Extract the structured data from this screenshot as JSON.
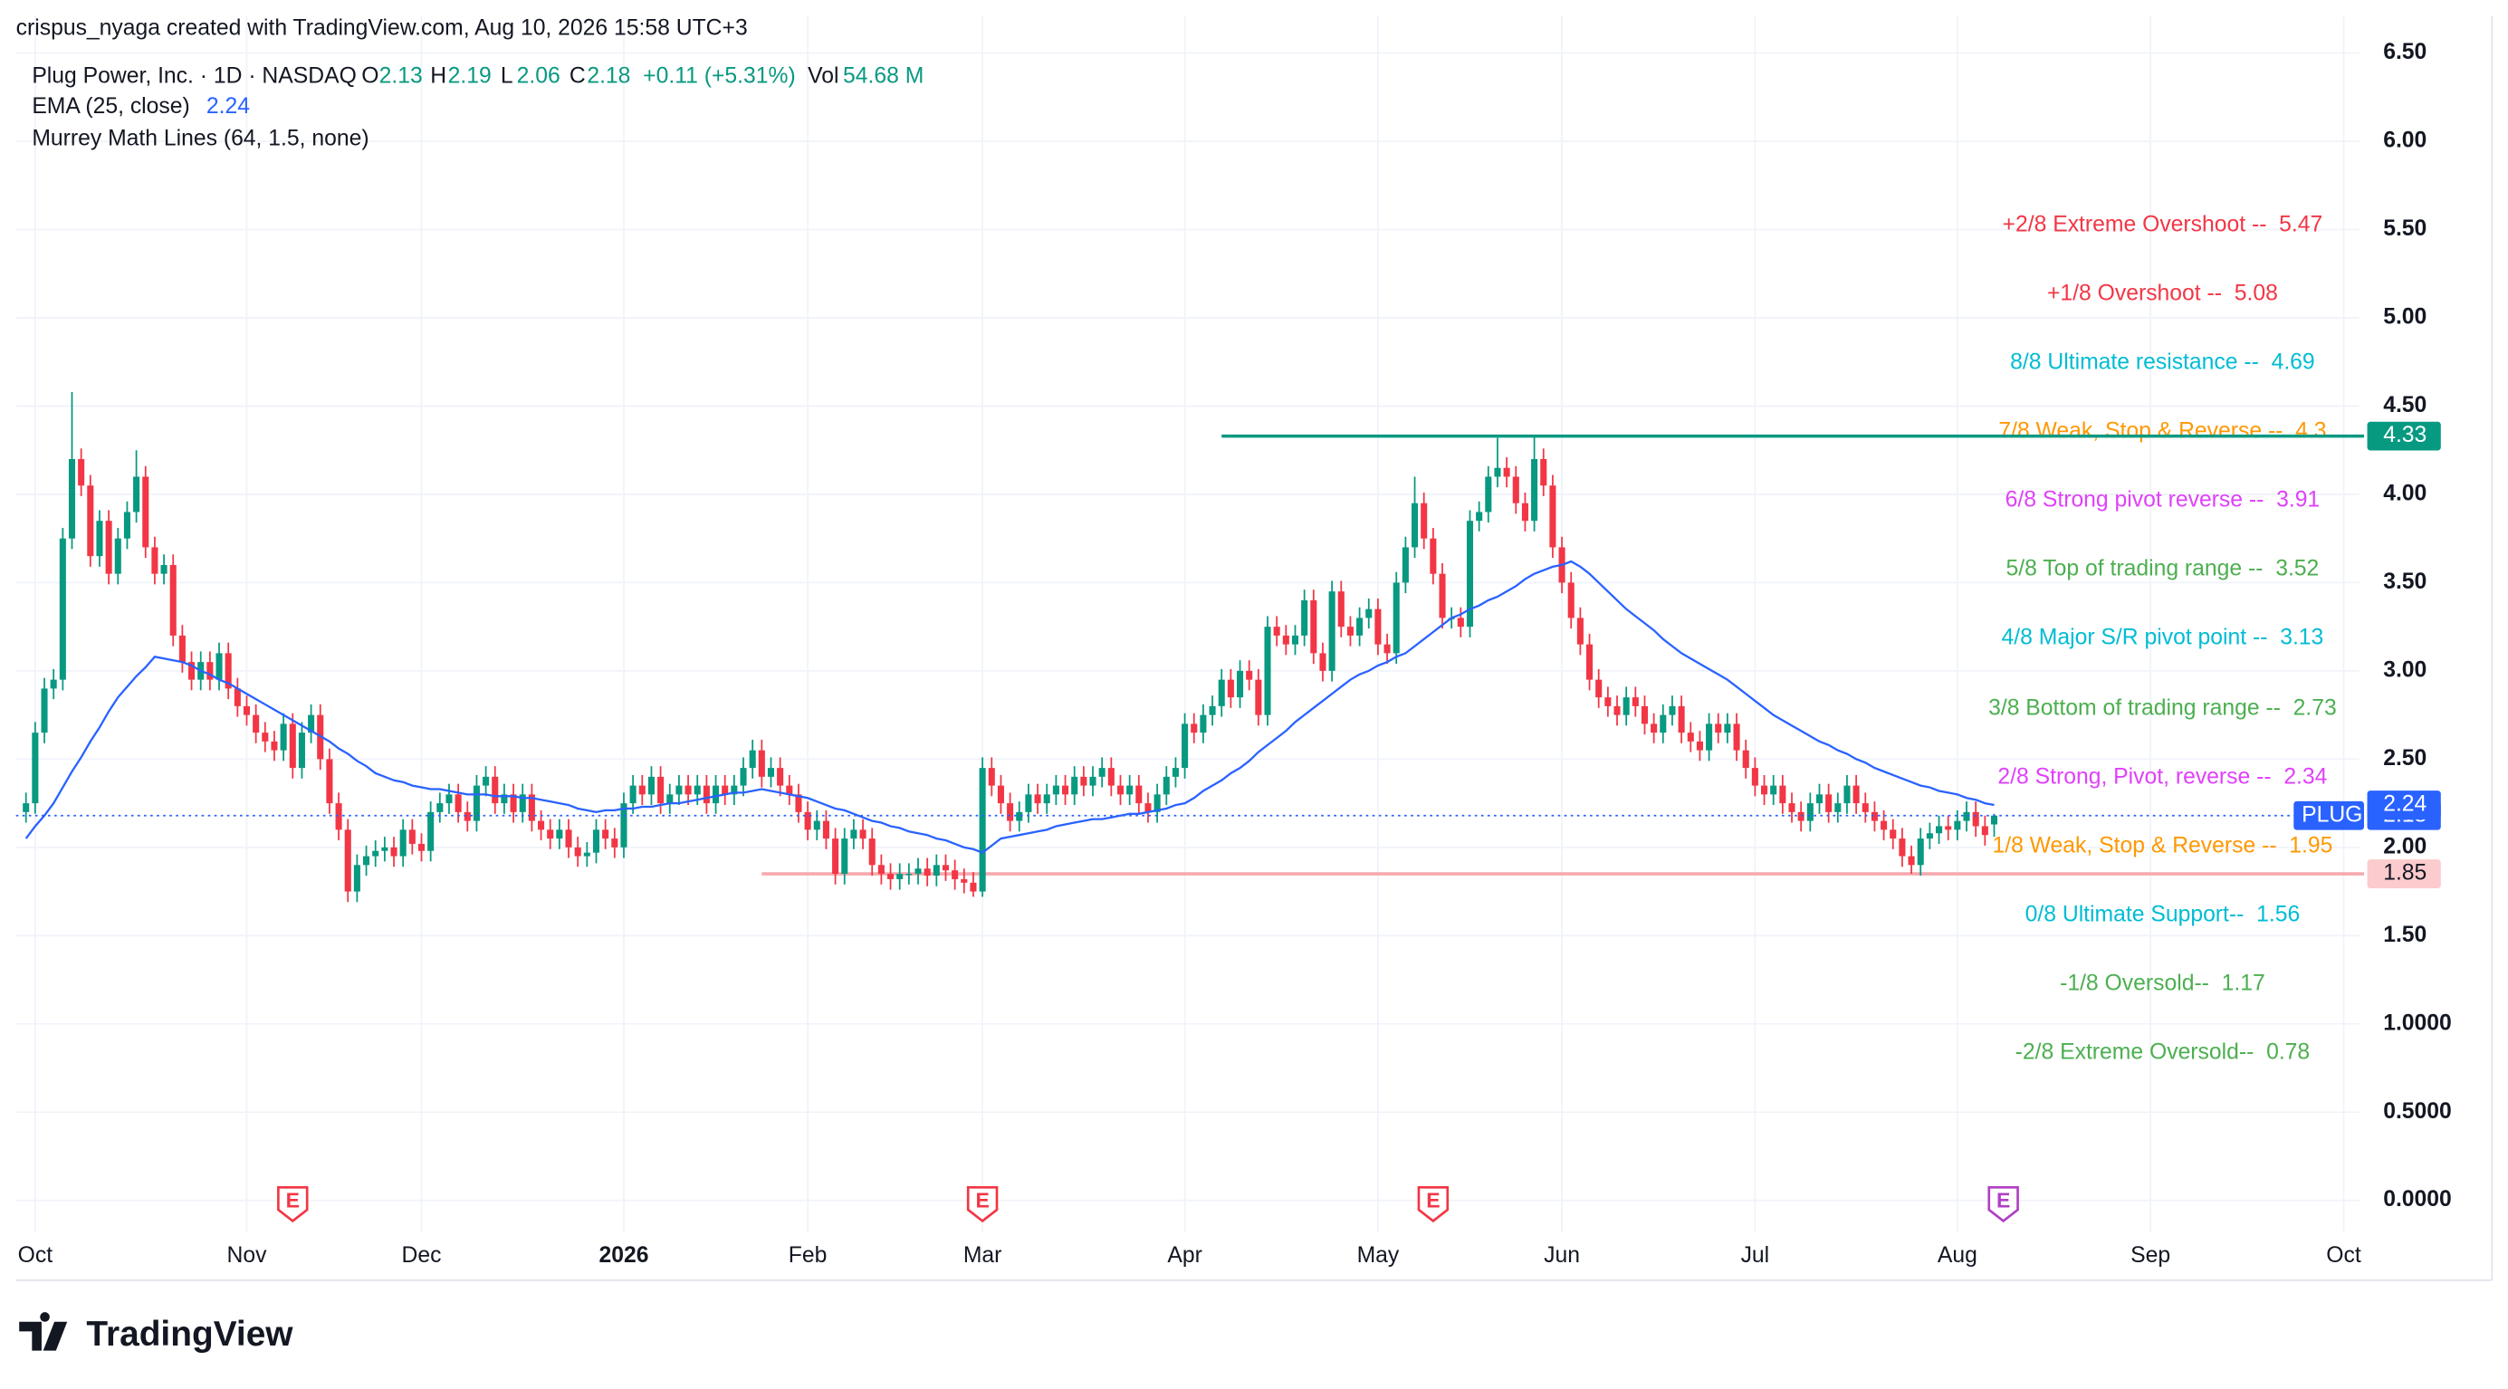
{
  "header": {
    "attribution": "crispus_nyaga created with TradingView.com, Aug 10, 2026 15:58 UTC+3"
  },
  "legend": {
    "symbol": "Plug Power, Inc. · 1D · NASDAQ",
    "o": "O",
    "h": "H",
    "l": "L",
    "c": "C",
    "change": "+0.11 (+5.31%)",
    "vol_label": "Vol",
    "vol": "54.68 M"
  },
  "footer": {
    "brand": "TradingView"
  },
  "chart_data": {
    "type": "candlestick",
    "symbol_label": "PLUG",
    "colors": {
      "up": "#089981",
      "down": "#f23645"
    },
    "open": [
      2.2,
      2.25,
      2.65,
      2.9,
      2.95,
      3.75,
      4.2,
      4.05,
      3.65,
      3.85,
      3.55,
      3.75,
      3.9,
      4.1,
      3.7,
      3.55,
      3.6,
      3.2,
      3.05,
      2.95,
      3.05,
      2.95,
      3.1,
      2.9,
      2.8,
      2.75,
      2.65,
      2.6,
      2.55,
      2.7,
      2.45,
      2.65,
      2.75,
      2.5,
      2.25,
      2.1,
      1.75,
      1.9,
      1.95,
      1.98,
      2.0,
      1.95,
      2.1,
      2.02,
      1.98,
      2.2,
      2.25,
      2.3,
      2.2,
      2.15,
      2.35,
      2.4,
      2.25,
      2.3,
      2.2,
      2.3,
      2.15,
      2.1,
      2.05,
      2.1,
      2.0,
      1.95,
      1.97,
      2.1,
      2.05,
      2.0,
      2.25,
      2.35,
      2.3,
      2.4,
      2.25,
      2.3,
      2.35,
      2.3,
      2.35,
      2.25,
      2.35,
      2.3,
      2.35,
      2.45,
      2.55,
      2.4,
      2.45,
      2.35,
      2.3,
      2.2,
      2.1,
      2.15,
      2.05,
      1.85,
      2.05,
      2.1,
      2.05,
      1.9,
      1.85,
      1.82,
      1.85,
      1.85,
      1.88,
      1.84,
      1.9,
      1.87,
      1.82,
      1.8,
      1.75,
      2.45,
      2.35,
      2.25,
      2.15,
      2.2,
      2.3,
      2.25,
      2.3,
      2.35,
      2.3,
      2.4,
      2.35,
      2.4,
      2.45,
      2.35,
      2.3,
      2.35,
      2.25,
      2.2,
      2.3,
      2.4,
      2.45,
      2.7,
      2.65,
      2.75,
      2.8,
      2.95,
      2.85,
      3.0,
      2.95,
      2.75,
      3.25,
      3.2,
      3.15,
      3.2,
      3.4,
      3.1,
      3.0,
      3.45,
      3.25,
      3.2,
      3.3,
      3.35,
      3.15,
      3.1,
      3.5,
      3.7,
      3.95,
      3.75,
      3.55,
      3.3,
      3.3,
      3.25,
      3.85,
      3.9,
      4.1,
      4.15,
      4.1,
      3.95,
      3.85,
      4.2,
      4.05,
      3.7,
      3.5,
      3.3,
      3.15,
      2.95,
      2.85,
      2.8,
      2.75,
      2.85,
      2.8,
      2.7,
      2.65,
      2.75,
      2.8,
      2.65,
      2.6,
      2.55,
      2.7,
      2.65,
      2.7,
      2.55,
      2.45,
      2.35,
      2.3,
      2.35,
      2.25,
      2.2,
      2.15,
      2.25,
      2.3,
      2.2,
      2.25,
      2.35,
      2.25,
      2.2,
      2.15,
      2.1,
      2.05,
      1.95,
      1.9,
      2.05,
      2.08,
      2.12,
      2.1,
      2.15,
      2.2,
      2.12,
      2.13
    ],
    "high": [
      2.31,
      2.71,
      2.96,
      3.01,
      3.81,
      4.58,
      4.26,
      4.11,
      3.91,
      3.91,
      3.81,
      3.96,
      4.25,
      4.16,
      3.76,
      3.66,
      3.66,
      3.26,
      3.11,
      3.11,
      3.11,
      3.16,
      3.16,
      2.96,
      2.86,
      2.81,
      2.71,
      2.66,
      2.76,
      2.76,
      2.71,
      2.81,
      2.81,
      2.56,
      2.31,
      2.16,
      1.96,
      2.01,
      2.04,
      2.06,
      2.06,
      2.16,
      2.16,
      2.08,
      2.26,
      2.31,
      2.36,
      2.36,
      2.26,
      2.41,
      2.46,
      2.46,
      2.36,
      2.36,
      2.36,
      2.36,
      2.21,
      2.16,
      2.16,
      2.16,
      2.06,
      2.03,
      2.16,
      2.16,
      2.11,
      2.31,
      2.41,
      2.41,
      2.46,
      2.46,
      2.36,
      2.41,
      2.41,
      2.41,
      2.41,
      2.41,
      2.41,
      2.41,
      2.51,
      2.61,
      2.61,
      2.51,
      2.51,
      2.41,
      2.36,
      2.26,
      2.21,
      2.21,
      2.11,
      2.11,
      2.16,
      2.16,
      2.11,
      1.96,
      1.91,
      1.91,
      1.91,
      1.94,
      1.94,
      1.96,
      1.96,
      1.93,
      1.88,
      1.86,
      2.51,
      2.51,
      2.41,
      2.31,
      2.26,
      2.36,
      2.36,
      2.36,
      2.41,
      2.41,
      2.46,
      2.46,
      2.46,
      2.51,
      2.51,
      2.41,
      2.41,
      2.41,
      2.31,
      2.36,
      2.46,
      2.51,
      2.76,
      2.76,
      2.81,
      2.86,
      3.01,
      3.01,
      3.06,
      3.06,
      3.01,
      3.31,
      3.31,
      3.26,
      3.26,
      3.46,
      3.46,
      3.16,
      3.51,
      3.51,
      3.31,
      3.36,
      3.41,
      3.41,
      3.21,
      3.56,
      3.76,
      4.1,
      4.01,
      3.81,
      3.61,
      3.36,
      3.36,
      3.91,
      3.96,
      4.16,
      4.32,
      4.21,
      4.16,
      4.01,
      4.33,
      4.26,
      4.11,
      3.76,
      3.56,
      3.36,
      3.21,
      3.01,
      2.91,
      2.86,
      2.91,
      2.91,
      2.86,
      2.76,
      2.81,
      2.86,
      2.86,
      2.71,
      2.66,
      2.76,
      2.76,
      2.76,
      2.76,
      2.61,
      2.51,
      2.41,
      2.41,
      2.41,
      2.31,
      2.26,
      2.31,
      2.36,
      2.36,
      2.31,
      2.41,
      2.41,
      2.31,
      2.26,
      2.21,
      2.16,
      2.11,
      2.01,
      2.11,
      2.14,
      2.18,
      2.18,
      2.21,
      2.26,
      2.26,
      2.18,
      2.19
    ],
    "low": [
      2.14,
      2.19,
      2.59,
      2.84,
      2.89,
      3.69,
      3.99,
      3.59,
      3.59,
      3.49,
      3.49,
      3.69,
      3.84,
      3.64,
      3.49,
      3.49,
      3.14,
      2.99,
      2.89,
      2.89,
      2.89,
      2.89,
      2.84,
      2.74,
      2.69,
      2.59,
      2.54,
      2.49,
      2.49,
      2.39,
      2.39,
      2.59,
      2.44,
      2.19,
      2.04,
      1.69,
      1.69,
      1.84,
      1.89,
      1.92,
      1.89,
      1.89,
      1.96,
      1.92,
      1.92,
      2.14,
      2.19,
      2.14,
      2.09,
      2.09,
      2.29,
      2.19,
      2.19,
      2.14,
      2.14,
      2.09,
      2.04,
      1.99,
      1.99,
      1.94,
      1.89,
      1.89,
      1.91,
      1.99,
      1.94,
      1.94,
      2.19,
      2.24,
      2.24,
      2.19,
      2.19,
      2.24,
      2.24,
      2.24,
      2.19,
      2.19,
      2.24,
      2.24,
      2.29,
      2.39,
      2.34,
      2.34,
      2.29,
      2.24,
      2.14,
      2.04,
      2.04,
      1.99,
      1.79,
      1.79,
      1.99,
      1.99,
      1.84,
      1.79,
      1.76,
      1.76,
      1.79,
      1.79,
      1.78,
      1.78,
      1.81,
      1.76,
      1.74,
      1.72,
      1.72,
      2.29,
      2.19,
      2.09,
      2.09,
      2.14,
      2.19,
      2.19,
      2.24,
      2.24,
      2.24,
      2.29,
      2.29,
      2.34,
      2.29,
      2.24,
      2.24,
      2.19,
      2.14,
      2.14,
      2.24,
      2.34,
      2.39,
      2.59,
      2.59,
      2.69,
      2.74,
      2.79,
      2.79,
      2.89,
      2.69,
      2.69,
      3.14,
      3.09,
      3.09,
      3.14,
      3.04,
      2.94,
      2.94,
      3.19,
      3.14,
      3.14,
      3.24,
      3.09,
      3.04,
      3.04,
      3.44,
      3.64,
      3.69,
      3.49,
      3.24,
      3.24,
      3.19,
      3.19,
      3.79,
      3.84,
      4.04,
      4.04,
      3.89,
      3.79,
      3.79,
      3.99,
      3.64,
      3.44,
      3.24,
      3.09,
      2.89,
      2.79,
      2.74,
      2.69,
      2.69,
      2.74,
      2.64,
      2.59,
      2.59,
      2.69,
      2.59,
      2.54,
      2.49,
      2.49,
      2.59,
      2.59,
      2.49,
      2.39,
      2.29,
      2.24,
      2.24,
      2.19,
      2.14,
      2.09,
      2.09,
      2.19,
      2.14,
      2.14,
      2.19,
      2.19,
      2.14,
      2.09,
      2.04,
      1.99,
      1.89,
      1.85,
      1.84,
      1.99,
      2.02,
      2.04,
      2.04,
      2.09,
      2.06,
      2.01,
      2.06
    ],
    "close": [
      2.25,
      2.65,
      2.9,
      2.95,
      3.75,
      4.2,
      4.05,
      3.65,
      3.85,
      3.55,
      3.75,
      3.9,
      4.1,
      3.7,
      3.55,
      3.6,
      3.2,
      3.05,
      2.95,
      3.05,
      2.95,
      3.1,
      2.9,
      2.8,
      2.75,
      2.65,
      2.6,
      2.55,
      2.7,
      2.45,
      2.65,
      2.75,
      2.5,
      2.25,
      2.1,
      1.75,
      1.9,
      1.95,
      1.98,
      2.0,
      1.95,
      2.1,
      2.02,
      1.98,
      2.2,
      2.25,
      2.3,
      2.2,
      2.15,
      2.35,
      2.4,
      2.25,
      2.3,
      2.2,
      2.3,
      2.15,
      2.1,
      2.05,
      2.1,
      2.0,
      1.95,
      1.97,
      2.1,
      2.05,
      2.0,
      2.25,
      2.35,
      2.3,
      2.4,
      2.25,
      2.3,
      2.35,
      2.3,
      2.35,
      2.25,
      2.35,
      2.3,
      2.35,
      2.45,
      2.55,
      2.4,
      2.45,
      2.35,
      2.3,
      2.2,
      2.1,
      2.15,
      2.05,
      1.85,
      2.05,
      2.1,
      2.05,
      1.9,
      1.85,
      1.82,
      1.85,
      1.85,
      1.88,
      1.84,
      1.9,
      1.87,
      1.82,
      1.8,
      1.75,
      2.45,
      2.35,
      2.25,
      2.15,
      2.2,
      2.3,
      2.25,
      2.3,
      2.35,
      2.3,
      2.4,
      2.35,
      2.4,
      2.45,
      2.35,
      2.3,
      2.35,
      2.25,
      2.2,
      2.3,
      2.4,
      2.45,
      2.7,
      2.65,
      2.75,
      2.8,
      2.95,
      2.85,
      3.0,
      2.95,
      2.75,
      3.25,
      3.2,
      3.15,
      3.2,
      3.4,
      3.1,
      3.0,
      3.45,
      3.25,
      3.2,
      3.3,
      3.35,
      3.15,
      3.1,
      3.5,
      3.7,
      3.95,
      3.75,
      3.55,
      3.3,
      3.3,
      3.25,
      3.85,
      3.9,
      4.1,
      4.15,
      4.1,
      3.95,
      3.85,
      4.2,
      4.05,
      3.7,
      3.5,
      3.3,
      3.15,
      2.95,
      2.85,
      2.8,
      2.75,
      2.85,
      2.8,
      2.7,
      2.65,
      2.75,
      2.8,
      2.65,
      2.6,
      2.55,
      2.7,
      2.65,
      2.7,
      2.55,
      2.45,
      2.35,
      2.3,
      2.35,
      2.25,
      2.2,
      2.15,
      2.25,
      2.3,
      2.2,
      2.25,
      2.35,
      2.25,
      2.2,
      2.15,
      2.1,
      2.05,
      1.95,
      1.9,
      2.05,
      2.08,
      2.12,
      2.1,
      2.15,
      2.2,
      2.12,
      2.07,
      2.18
    ],
    "ema": {
      "name": "EMA (25, close)",
      "color": "#2962ff",
      "values": [
        2.05,
        2.12,
        2.18,
        2.25,
        2.34,
        2.43,
        2.51,
        2.6,
        2.68,
        2.77,
        2.85,
        2.91,
        2.97,
        3.02,
        3.08,
        3.07,
        3.06,
        3.05,
        3.03,
        3.0,
        2.98,
        2.95,
        2.93,
        2.9,
        2.87,
        2.84,
        2.81,
        2.78,
        2.75,
        2.72,
        2.69,
        2.66,
        2.63,
        2.6,
        2.56,
        2.53,
        2.49,
        2.46,
        2.42,
        2.4,
        2.38,
        2.37,
        2.35,
        2.34,
        2.33,
        2.33,
        2.32,
        2.31,
        2.3,
        2.3,
        2.3,
        2.29,
        2.29,
        2.29,
        2.28,
        2.28,
        2.27,
        2.26,
        2.25,
        2.24,
        2.22,
        2.21,
        2.2,
        2.21,
        2.21,
        2.22,
        2.22,
        2.23,
        2.23,
        2.24,
        2.25,
        2.25,
        2.26,
        2.27,
        2.28,
        2.29,
        2.3,
        2.31,
        2.31,
        2.32,
        2.33,
        2.32,
        2.31,
        2.3,
        2.29,
        2.28,
        2.26,
        2.24,
        2.22,
        2.21,
        2.19,
        2.17,
        2.15,
        2.14,
        2.12,
        2.11,
        2.09,
        2.08,
        2.07,
        2.05,
        2.04,
        2.02,
        2.0,
        1.99,
        1.97,
        2.01,
        2.05,
        2.06,
        2.07,
        2.08,
        2.09,
        2.1,
        2.12,
        2.13,
        2.14,
        2.15,
        2.16,
        2.16,
        2.17,
        2.18,
        2.19,
        2.19,
        2.2,
        2.21,
        2.22,
        2.24,
        2.25,
        2.28,
        2.32,
        2.35,
        2.38,
        2.42,
        2.45,
        2.49,
        2.54,
        2.58,
        2.62,
        2.66,
        2.71,
        2.75,
        2.79,
        2.83,
        2.87,
        2.91,
        2.95,
        2.98,
        3.0,
        3.03,
        3.05,
        3.08,
        3.1,
        3.14,
        3.18,
        3.22,
        3.26,
        3.3,
        3.32,
        3.35,
        3.37,
        3.4,
        3.42,
        3.45,
        3.48,
        3.52,
        3.55,
        3.57,
        3.59,
        3.6,
        3.62,
        3.59,
        3.55,
        3.5,
        3.45,
        3.4,
        3.35,
        3.31,
        3.27,
        3.23,
        3.18,
        3.14,
        3.1,
        3.07,
        3.04,
        3.01,
        2.98,
        2.95,
        2.91,
        2.87,
        2.83,
        2.79,
        2.75,
        2.72,
        2.69,
        2.66,
        2.63,
        2.6,
        2.58,
        2.55,
        2.53,
        2.5,
        2.48,
        2.45,
        2.43,
        2.41,
        2.39,
        2.37,
        2.35,
        2.34,
        2.32,
        2.31,
        2.3,
        2.28,
        2.27,
        2.25,
        2.24
      ]
    },
    "murrey": {
      "name": "Murrey Math Lines (64, 1.5, none)",
      "levels": [
        {
          "text": "+2/8 Extreme Overshoot --  5.47",
          "value": 5.47,
          "color": "#f23645"
        },
        {
          "text": "+1/8 Overshoot --  5.08",
          "value": 5.08,
          "color": "#f23645"
        },
        {
          "text": "8/8 Ultimate resistance --  4.69",
          "value": 4.69,
          "color": "#00bcd4"
        },
        {
          "text": "7/8 Weak, Stop & Reverse --  4.3",
          "value": 4.3,
          "color": "#ff9800"
        },
        {
          "text": "6/8 Strong pivot reverse --  3.91",
          "value": 3.91,
          "color": "#e040fb"
        },
        {
          "text": "5/8 Top of trading range --  3.52",
          "value": 3.52,
          "color": "#4caf50"
        },
        {
          "text": "4/8 Major S/R pivot point --  3.13",
          "value": 3.13,
          "color": "#00bcd4"
        },
        {
          "text": "3/8 Bottom of trading range --  2.73",
          "value": 2.73,
          "color": "#4caf50"
        },
        {
          "text": "2/8 Strong, Pivot, reverse --  2.34",
          "value": 2.34,
          "color": "#e040fb"
        },
        {
          "text": "1/8 Weak, Stop & Reverse --  1.95",
          "value": 1.95,
          "color": "#ff9800"
        },
        {
          "text": "0/8 Ultimate Support--  1.56",
          "value": 1.56,
          "color": "#00bcd4"
        },
        {
          "text": "-1/8 Oversold--  1.17",
          "value": 1.17,
          "color": "#4caf50"
        },
        {
          "text": "-2/8 Extreme Oversold--  0.78",
          "value": 0.78,
          "color": "#4caf50"
        }
      ]
    },
    "levels": [
      {
        "value": 4.33,
        "x_start": 130,
        "color": "#089981"
      },
      {
        "value": 1.85,
        "x_start": 80,
        "color": "#f7a9ae"
      }
    ],
    "events": {
      "label": "E",
      "x": [
        29,
        104,
        153,
        215
      ],
      "colors": [
        "#f23645",
        "#f23645",
        "#f23645",
        "#b03fc4"
      ]
    },
    "xlim": [
      -1,
      254
    ],
    "xticks": [
      {
        "value": 1,
        "label": "Oct"
      },
      {
        "value": 24,
        "label": "Nov"
      },
      {
        "value": 43,
        "label": "Dec"
      },
      {
        "value": 65,
        "label": "2026"
      },
      {
        "value": 85,
        "label": "Feb"
      },
      {
        "value": 104,
        "label": "Mar"
      },
      {
        "value": 126,
        "label": "Apr"
      },
      {
        "value": 147,
        "label": "May"
      },
      {
        "value": 167,
        "label": "Jun"
      },
      {
        "value": 188,
        "label": "Jul"
      },
      {
        "value": 210,
        "label": "Aug"
      },
      {
        "value": 231,
        "label": "Sep"
      },
      {
        "value": 252,
        "label": "Oct"
      }
    ],
    "ylim": [
      -0.18,
      6.71
    ],
    "yticks": [
      {
        "value": 0,
        "label": "0.0000"
      },
      {
        "value": 0.5,
        "label": "0.5000"
      },
      {
        "value": 1,
        "label": "1.0000"
      },
      {
        "value": 1.5,
        "label": "1.50"
      },
      {
        "value": 2,
        "label": "2.00"
      },
      {
        "value": 2.5,
        "label": "2.50"
      },
      {
        "value": 3,
        "label": "3.00"
      },
      {
        "value": 3.5,
        "label": "3.50"
      },
      {
        "value": 4,
        "label": "4.00"
      },
      {
        "value": 4.5,
        "label": "4.50"
      },
      {
        "value": 5,
        "label": "5.00"
      },
      {
        "value": 5.5,
        "label": "5.50"
      },
      {
        "value": 6,
        "label": "6.00"
      },
      {
        "value": 6.5,
        "label": "6.50"
      }
    ],
    "grid": true
  }
}
